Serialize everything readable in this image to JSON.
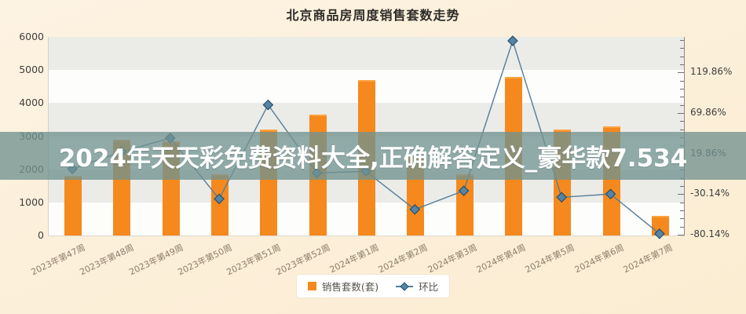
{
  "title": "北京商品房周度销售套数走势",
  "watermark_banner": {
    "text": "2024年天天彩免费资料大全,正确解答定义_豪华款7.534"
  },
  "legend": [
    {
      "label": "销售套数(套)",
      "type": "bar"
    },
    {
      "label": "环比",
      "type": "line"
    }
  ],
  "colors": {
    "bar": "#f5891d",
    "bar_top": "#fca33c",
    "line": "#567c96",
    "marker_fill": "#5585a6",
    "marker_stroke": "#27506b",
    "background": "#fcf0dc",
    "banner": "rgba(113,146,143,0.78)",
    "banner_text": "#ffffff"
  },
  "chart_data": {
    "type": "bar",
    "subtype": "bar+line-dual-axis",
    "title": "北京商品房周度销售套数走势",
    "categories": [
      "2023年第47周",
      "2023年第48周",
      "2023年第49周",
      "2023年第50周",
      "2023年第51周",
      "2023年第52周",
      "2024年第1周",
      "2024年第2周",
      "2024年第3周",
      "2024年第4周",
      "2024年第5周",
      "2024年第6周",
      "2024年第7周"
    ],
    "series": [
      {
        "name": "销售套数(套)",
        "type": "bar",
        "axis": "left",
        "unit": "套",
        "values": [
          1800,
          2900,
          2850,
          1850,
          3200,
          3650,
          4700,
          2400,
          1850,
          4800,
          3200,
          3300,
          600
        ]
      },
      {
        "name": "环比",
        "type": "line",
        "axis": "right",
        "unit": "%",
        "values": [
          1,
          22,
          39,
          -36,
          80,
          -4,
          -2,
          -49,
          -26,
          159,
          -34,
          -30,
          -79
        ]
      }
    ],
    "left_axis": {
      "min": 0,
      "max": 6000,
      "tick_interval": 1000,
      "tick_labels": [
        "6000",
        "5000",
        "4000",
        "3000",
        "2000",
        "1000",
        "0"
      ],
      "tick_values": [
        6000,
        5000,
        4000,
        3000,
        2000,
        1000,
        0
      ]
    },
    "right_axis": {
      "tick_labels": [
        "119.86%",
        "69.86%",
        "19.86%",
        "-30.14%",
        "-80.14%"
      ],
      "tick_values": [
        119.86,
        69.86,
        19.86,
        -30.14,
        -80.14
      ],
      "minor_tick_interval": 10
    },
    "grid": "alternating-horizontal-bands",
    "legend_position": "bottom-center"
  }
}
